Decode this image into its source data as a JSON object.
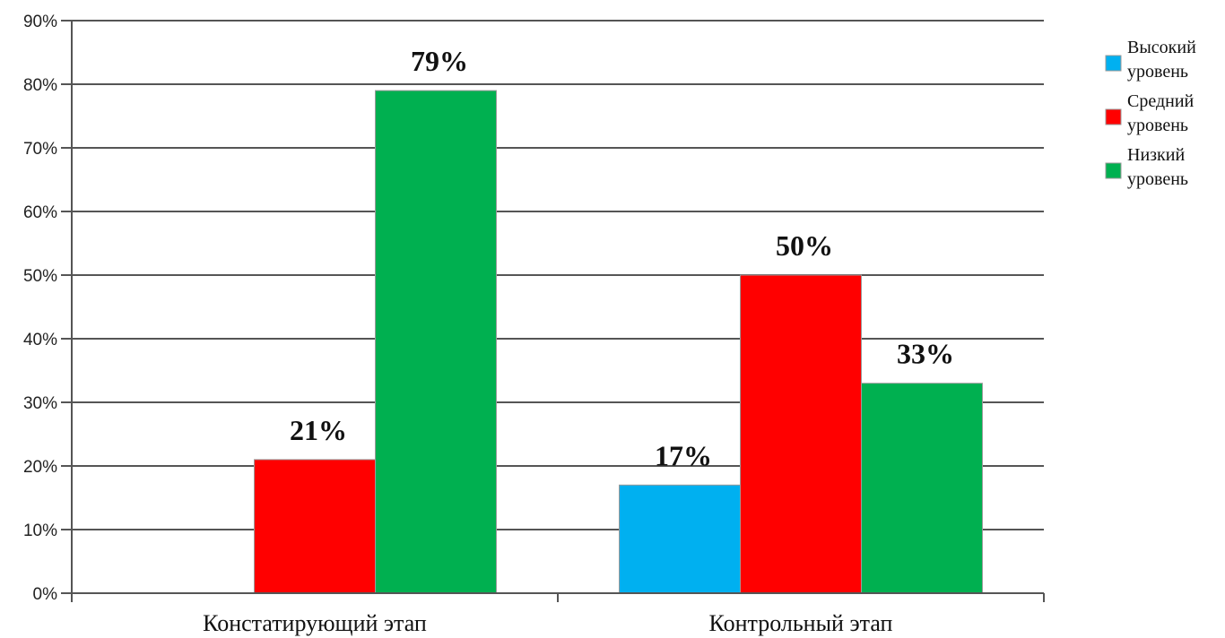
{
  "chart_data": {
    "type": "bar",
    "categories": [
      "Констатирующий этап",
      "Контрольный этап"
    ],
    "series": [
      {
        "name": "Высокий уровень",
        "color": "#00b0f0",
        "values": [
          0,
          17
        ],
        "labels": [
          "",
          "17%"
        ]
      },
      {
        "name": "Средний уровень",
        "color": "#ff0000",
        "values": [
          21,
          50
        ],
        "labels": [
          "21%",
          "50%"
        ]
      },
      {
        "name": "Низкий уровень",
        "color": "#00b050",
        "values": [
          79,
          33
        ],
        "labels": [
          "79%",
          "33%"
        ]
      }
    ],
    "ylim": [
      0,
      90
    ],
    "yticks": [
      "0%",
      "10%",
      "20%",
      "30%",
      "40%",
      "50%",
      "60%",
      "70%",
      "80%",
      "90%"
    ],
    "grid": true,
    "legend_position": "right",
    "title": "",
    "xlabel": "",
    "ylabel": ""
  }
}
